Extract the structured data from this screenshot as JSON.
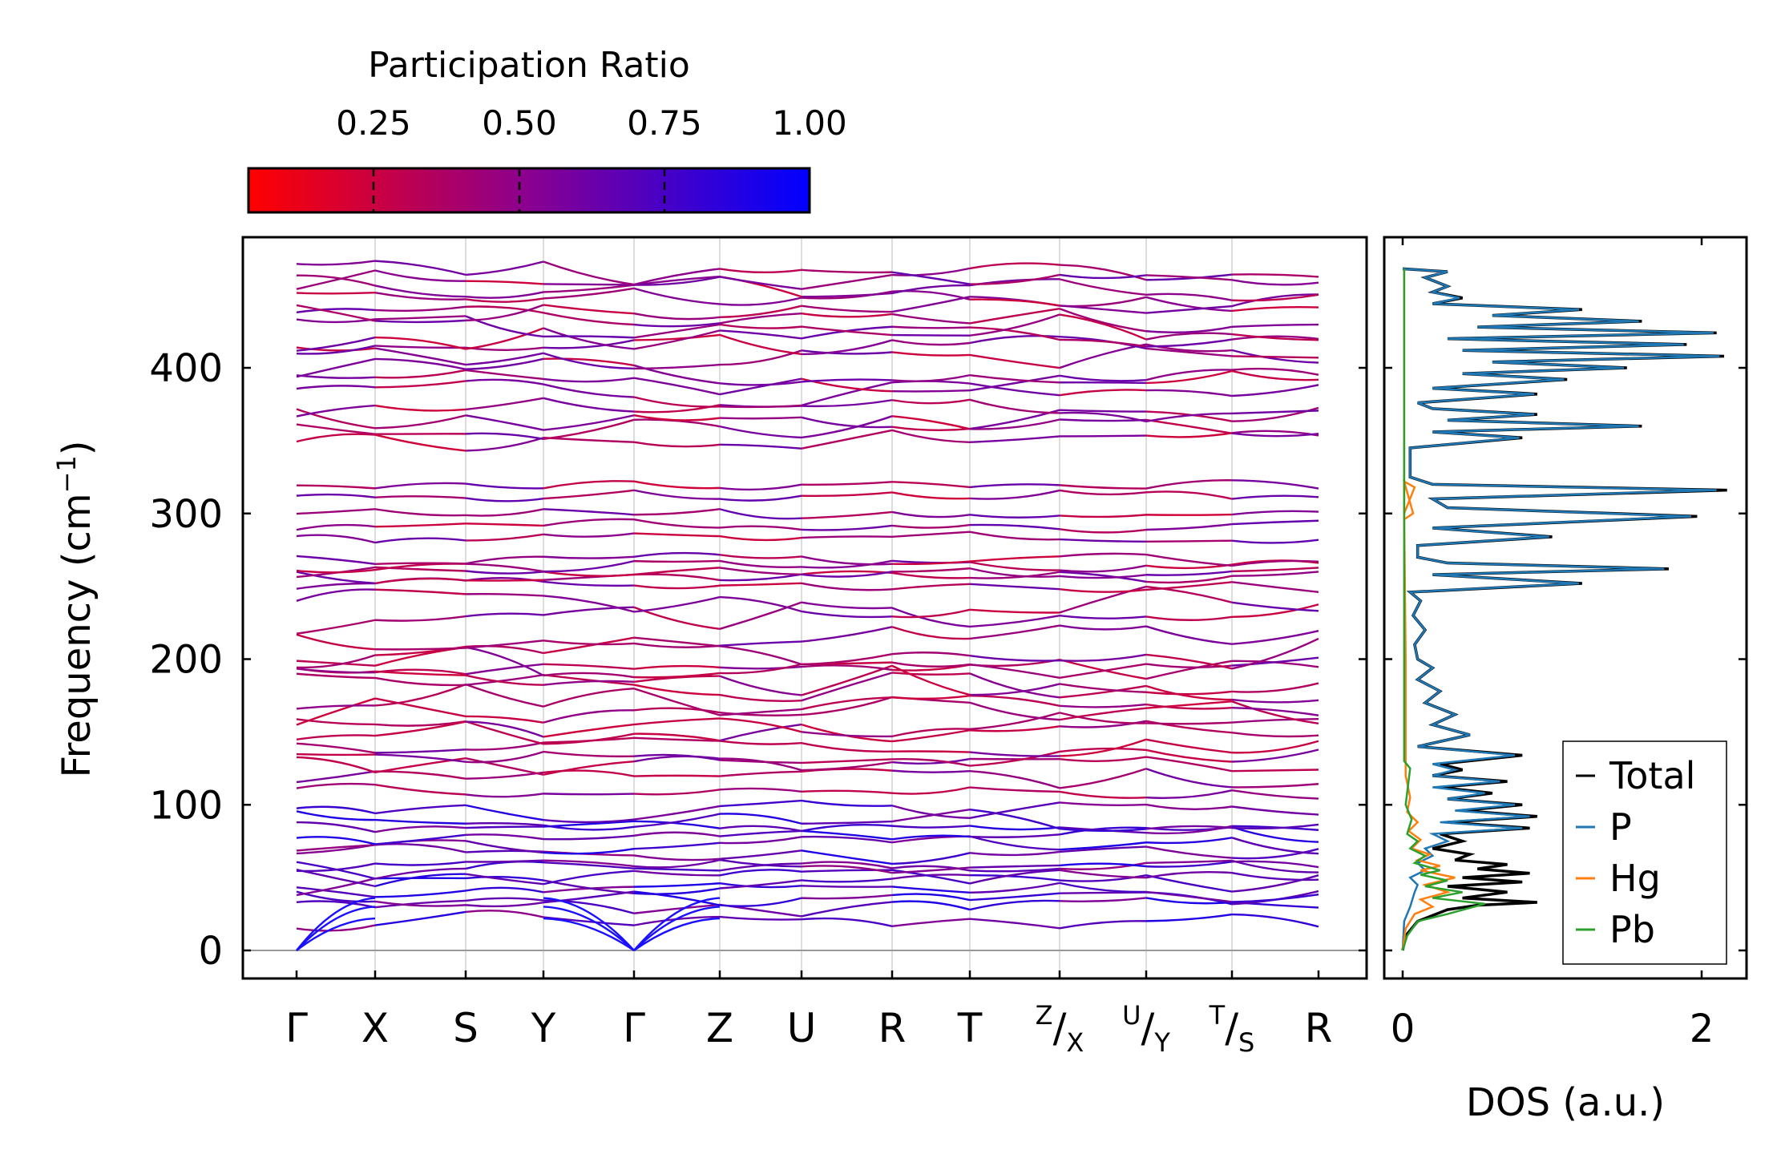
{
  "chart_data": [
    {
      "type": "line",
      "panel": "band-structure",
      "ylabel": "Frequency (cm",
      "ylabel_sup": "−1",
      "ylabel_close": ")",
      "ylim": [
        -22,
        490
      ],
      "yticks": [
        0,
        100,
        200,
        300,
        400
      ],
      "kpoints": [
        {
          "label": "Γ"
        },
        {
          "label": "X"
        },
        {
          "label": "S"
        },
        {
          "label": "Y"
        },
        {
          "label": "Γ"
        },
        {
          "label": "Z"
        },
        {
          "label": "U"
        },
        {
          "label": "R"
        },
        {
          "label": "T"
        },
        {
          "label": "X",
          "sup": "Z"
        },
        {
          "label": "Y",
          "sup": "U"
        },
        {
          "label": "S",
          "sup": "T"
        },
        {
          "label": "R"
        }
      ],
      "band_levels_cm1": [
        22,
        30,
        36,
        40,
        45,
        50,
        55,
        60,
        66,
        72,
        78,
        85,
        90,
        96,
        108,
        118,
        126,
        132,
        140,
        148,
        155,
        165,
        172,
        180,
        186,
        192,
        198,
        204,
        216,
        228,
        240,
        250,
        256,
        260,
        264,
        268,
        284,
        292,
        300,
        312,
        320,
        352,
        358,
        366,
        372,
        382,
        390,
        398,
        408,
        414,
        420,
        428,
        434,
        440,
        446,
        455,
        462,
        466
      ],
      "acoustic_top_cm1": [
        22,
        30,
        36
      ]
    },
    {
      "type": "line",
      "panel": "dos",
      "xlabel": "DOS (a.u.)",
      "xticks": [
        0,
        2
      ],
      "xlim": [
        -0.1,
        2.3
      ],
      "legend_position": "right-lower",
      "series": [
        {
          "name": "Total",
          "color": "#000000",
          "points": [
            [
              0,
              0
            ],
            [
              0.02,
              10
            ],
            [
              0.1,
              20
            ],
            [
              0.3,
              28
            ],
            [
              0.5,
              31
            ],
            [
              0.9,
              33
            ],
            [
              0.4,
              36
            ],
            [
              0.7,
              40
            ],
            [
              0.3,
              44
            ],
            [
              0.8,
              47
            ],
            [
              0.4,
              50
            ],
            [
              0.85,
              53
            ],
            [
              0.5,
              56
            ],
            [
              0.7,
              59
            ],
            [
              0.35,
              62
            ],
            [
              0.45,
              66
            ],
            [
              0.2,
              70
            ],
            [
              0.4,
              75
            ],
            [
              0.25,
              80
            ],
            [
              0.85,
              84
            ],
            [
              0.3,
              88
            ],
            [
              0.9,
              92
            ],
            [
              0.4,
              96
            ],
            [
              0.8,
              100
            ],
            [
              0.3,
              104
            ],
            [
              0.6,
              108
            ],
            [
              0.25,
              112
            ],
            [
              0.7,
              116
            ],
            [
              0.2,
              120
            ],
            [
              0.4,
              124
            ],
            [
              0.25,
              128
            ],
            [
              0.8,
              134
            ],
            [
              0.1,
              140
            ],
            [
              0.45,
              148
            ],
            [
              0.2,
              155
            ],
            [
              0.35,
              162
            ],
            [
              0.15,
              170
            ],
            [
              0.25,
              178
            ],
            [
              0.1,
              186
            ],
            [
              0.2,
              194
            ],
            [
              0.1,
              200
            ],
            [
              0.08,
              210
            ],
            [
              0.15,
              220
            ],
            [
              0.07,
              230
            ],
            [
              0.12,
              240
            ],
            [
              0.05,
              246
            ],
            [
              1.2,
              252
            ],
            [
              0.2,
              258
            ],
            [
              1.78,
              262
            ],
            [
              0.3,
              266
            ],
            [
              0.1,
              270
            ],
            [
              0.1,
              278
            ],
            [
              1.0,
              284
            ],
            [
              0.2,
              290
            ],
            [
              1.97,
              298
            ],
            [
              0.3,
              304
            ],
            [
              0.2,
              310
            ],
            [
              2.17,
              316
            ],
            [
              0.2,
              320
            ],
            [
              0.05,
              325
            ],
            [
              0.05,
              345
            ],
            [
              0.8,
              352
            ],
            [
              0.2,
              356
            ],
            [
              1.6,
              360
            ],
            [
              0.3,
              364
            ],
            [
              0.9,
              368
            ],
            [
              0.2,
              372
            ],
            [
              0.1,
              376
            ],
            [
              0.9,
              382
            ],
            [
              0.2,
              386
            ],
            [
              1.1,
              392
            ],
            [
              0.4,
              396
            ],
            [
              1.5,
              400
            ],
            [
              0.6,
              404
            ],
            [
              2.15,
              408
            ],
            [
              0.4,
              412
            ],
            [
              1.9,
              416
            ],
            [
              0.3,
              420
            ],
            [
              2.1,
              424
            ],
            [
              0.5,
              428
            ],
            [
              1.6,
              432
            ],
            [
              0.6,
              436
            ],
            [
              1.2,
              440
            ],
            [
              0.2,
              444
            ],
            [
              0.4,
              448
            ],
            [
              0.2,
              452
            ],
            [
              0.3,
              456
            ],
            [
              0.15,
              462
            ],
            [
              0.3,
              466
            ],
            [
              0,
              468
            ]
          ]
        },
        {
          "name": "P",
          "color": "#1f77b4",
          "points": [
            [
              0,
              0
            ],
            [
              0.01,
              20
            ],
            [
              0.05,
              30
            ],
            [
              0.08,
              40
            ],
            [
              0.1,
              45
            ],
            [
              0.05,
              50
            ],
            [
              0.15,
              55
            ],
            [
              0.1,
              60
            ],
            [
              0.2,
              65
            ],
            [
              0.15,
              70
            ],
            [
              0.3,
              75
            ],
            [
              0.2,
              80
            ],
            [
              0.8,
              84
            ],
            [
              0.25,
              88
            ],
            [
              0.85,
              92
            ],
            [
              0.35,
              96
            ],
            [
              0.75,
              100
            ],
            [
              0.3,
              104
            ],
            [
              0.55,
              108
            ],
            [
              0.2,
              112
            ],
            [
              0.65,
              116
            ],
            [
              0.2,
              120
            ],
            [
              0.35,
              124
            ],
            [
              0.2,
              128
            ],
            [
              0.75,
              134
            ],
            [
              0.1,
              140
            ],
            [
              0.45,
              148
            ],
            [
              0.2,
              155
            ],
            [
              0.35,
              162
            ],
            [
              0.15,
              170
            ],
            [
              0.25,
              178
            ],
            [
              0.1,
              186
            ],
            [
              0.2,
              194
            ],
            [
              0.1,
              200
            ],
            [
              0.08,
              210
            ],
            [
              0.15,
              220
            ],
            [
              0.07,
              230
            ],
            [
              0.12,
              240
            ],
            [
              0.05,
              246
            ],
            [
              1.18,
              252
            ],
            [
              0.2,
              258
            ],
            [
              1.75,
              262
            ],
            [
              0.3,
              266
            ],
            [
              0.1,
              270
            ],
            [
              0.1,
              278
            ],
            [
              0.98,
              284
            ],
            [
              0.2,
              290
            ],
            [
              1.93,
              298
            ],
            [
              0.3,
              304
            ],
            [
              0.2,
              310
            ],
            [
              2.1,
              316
            ],
            [
              0.2,
              320
            ],
            [
              0.05,
              325
            ],
            [
              0.05,
              345
            ],
            [
              0.78,
              352
            ],
            [
              0.2,
              356
            ],
            [
              1.58,
              360
            ],
            [
              0.3,
              364
            ],
            [
              0.88,
              368
            ],
            [
              0.2,
              372
            ],
            [
              0.1,
              376
            ],
            [
              0.88,
              382
            ],
            [
              0.2,
              386
            ],
            [
              1.08,
              392
            ],
            [
              0.4,
              396
            ],
            [
              1.48,
              400
            ],
            [
              0.6,
              404
            ],
            [
              2.12,
              408
            ],
            [
              0.4,
              412
            ],
            [
              1.88,
              416
            ],
            [
              0.3,
              420
            ],
            [
              2.08,
              424
            ],
            [
              0.5,
              428
            ],
            [
              1.58,
              432
            ],
            [
              0.6,
              436
            ],
            [
              1.18,
              440
            ],
            [
              0.2,
              444
            ],
            [
              0.38,
              448
            ],
            [
              0.2,
              452
            ],
            [
              0.3,
              456
            ],
            [
              0.15,
              462
            ],
            [
              0.3,
              466
            ],
            [
              0,
              468
            ]
          ]
        },
        {
          "name": "Hg",
          "color": "#ff7f0e",
          "points": [
            [
              0,
              0
            ],
            [
              0.02,
              15
            ],
            [
              0.08,
              25
            ],
            [
              0.2,
              30
            ],
            [
              0.12,
              35
            ],
            [
              0.3,
              40
            ],
            [
              0.15,
              45
            ],
            [
              0.35,
              50
            ],
            [
              0.12,
              55
            ],
            [
              0.25,
              58
            ],
            [
              0.1,
              62
            ],
            [
              0.18,
              66
            ],
            [
              0.06,
              70
            ],
            [
              0.12,
              76
            ],
            [
              0.04,
              82
            ],
            [
              0.1,
              88
            ],
            [
              0.03,
              95
            ],
            [
              0.05,
              105
            ],
            [
              0.02,
              120
            ],
            [
              0.02,
              200
            ],
            [
              0.01,
              300
            ],
            [
              0.08,
              318
            ],
            [
              0.01,
              322
            ],
            [
              0.07,
              300
            ],
            [
              0.01,
              296
            ],
            [
              0.01,
              468
            ]
          ]
        },
        {
          "name": "Pb",
          "color": "#2ca02c",
          "points": [
            [
              0,
              0
            ],
            [
              0.03,
              10
            ],
            [
              0.1,
              20
            ],
            [
              0.3,
              25
            ],
            [
              0.55,
              32
            ],
            [
              0.2,
              36
            ],
            [
              0.4,
              40
            ],
            [
              0.15,
              44
            ],
            [
              0.3,
              48
            ],
            [
              0.12,
              52
            ],
            [
              0.25,
              55
            ],
            [
              0.08,
              60
            ],
            [
              0.15,
              65
            ],
            [
              0.05,
              70
            ],
            [
              0.1,
              75
            ],
            [
              0.03,
              80
            ],
            [
              0.06,
              90
            ],
            [
              0.02,
              100
            ],
            [
              0.05,
              125
            ],
            [
              0.01,
              130
            ],
            [
              0.01,
              468
            ]
          ]
        }
      ]
    },
    {
      "type": "heatmap",
      "panel": "colorbar",
      "title": "Participation Ratio",
      "range": [
        0.0,
        1.0
      ],
      "ticks": [
        "0.25",
        "0.50",
        "0.75",
        "1.00"
      ],
      "colors": [
        "#ff0000",
        "#0000ff"
      ]
    }
  ]
}
